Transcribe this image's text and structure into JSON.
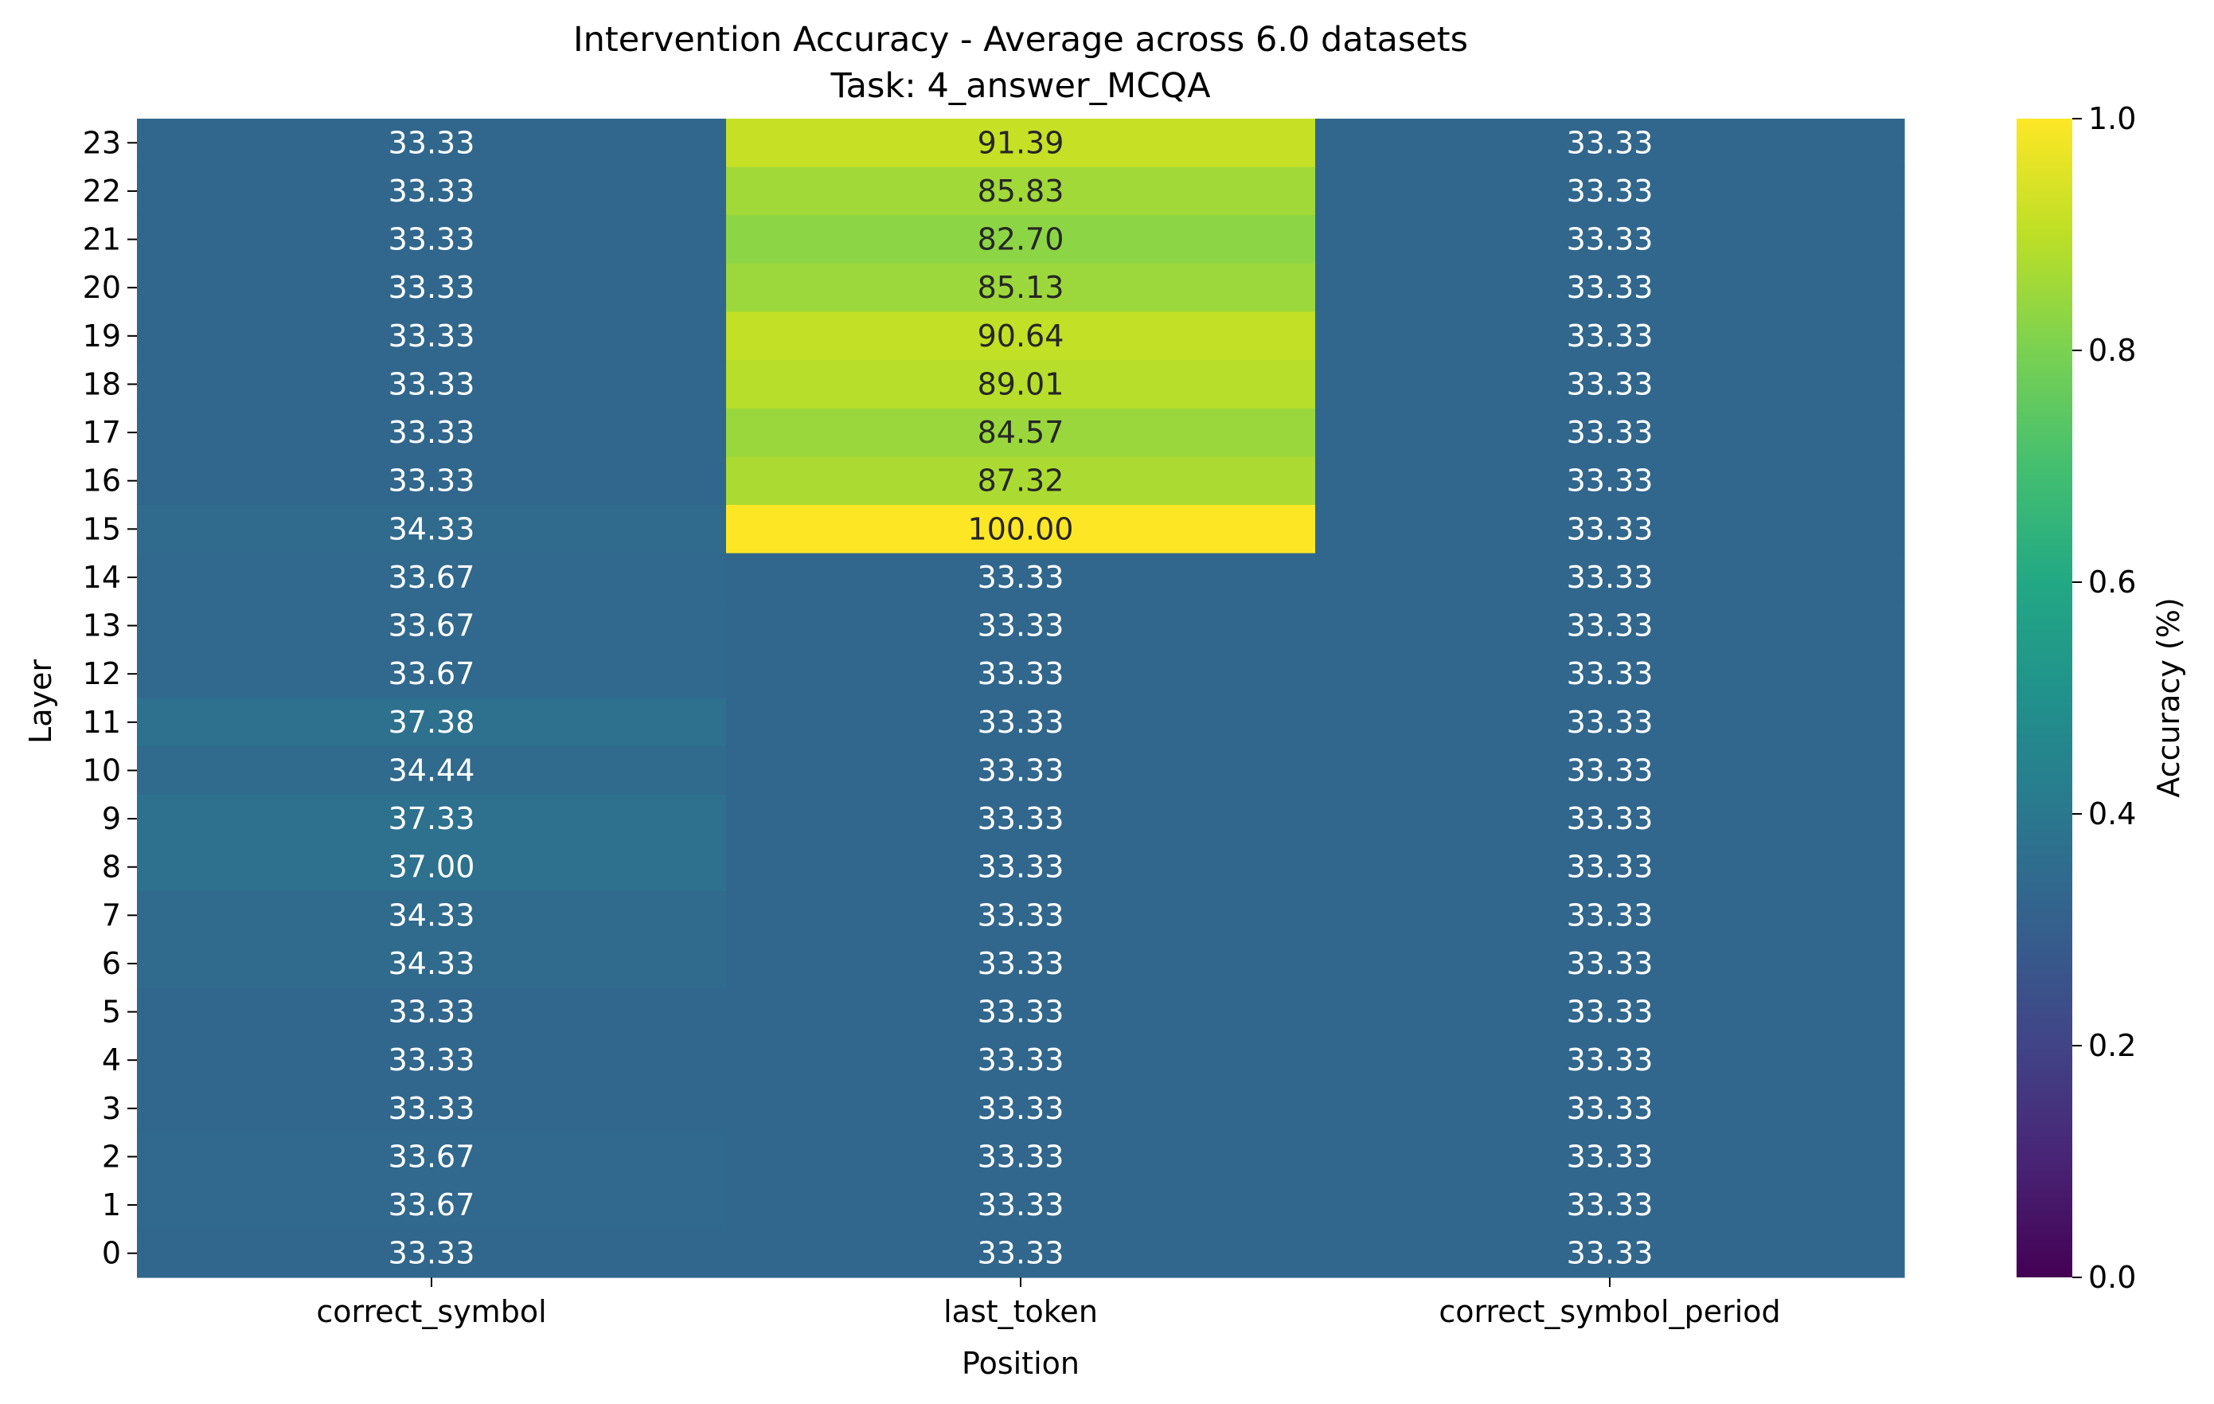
{
  "chart_data": {
    "type": "heatmap",
    "title": "Intervention Accuracy - Average across 6.0 datasets",
    "subtitle": "Task: 4_answer_MCQA",
    "xlabel": "Position",
    "ylabel": "Layer",
    "x_categories": [
      "correct_symbol",
      "last_token",
      "correct_symbol_period"
    ],
    "y_categories": [
      "23",
      "22",
      "21",
      "20",
      "19",
      "18",
      "17",
      "16",
      "15",
      "14",
      "13",
      "12",
      "11",
      "10",
      "9",
      "8",
      "7",
      "6",
      "5",
      "4",
      "3",
      "2",
      "1",
      "0"
    ],
    "values": [
      [
        33.33,
        91.39,
        33.33
      ],
      [
        33.33,
        85.83,
        33.33
      ],
      [
        33.33,
        82.7,
        33.33
      ],
      [
        33.33,
        85.13,
        33.33
      ],
      [
        33.33,
        90.64,
        33.33
      ],
      [
        33.33,
        89.01,
        33.33
      ],
      [
        33.33,
        84.57,
        33.33
      ],
      [
        33.33,
        87.32,
        33.33
      ],
      [
        34.33,
        100.0,
        33.33
      ],
      [
        33.67,
        33.33,
        33.33
      ],
      [
        33.67,
        33.33,
        33.33
      ],
      [
        33.67,
        33.33,
        33.33
      ],
      [
        37.38,
        33.33,
        33.33
      ],
      [
        34.44,
        33.33,
        33.33
      ],
      [
        37.33,
        33.33,
        33.33
      ],
      [
        37.0,
        33.33,
        33.33
      ],
      [
        34.33,
        33.33,
        33.33
      ],
      [
        34.33,
        33.33,
        33.33
      ],
      [
        33.33,
        33.33,
        33.33
      ],
      [
        33.33,
        33.33,
        33.33
      ],
      [
        33.33,
        33.33,
        33.33
      ],
      [
        33.67,
        33.33,
        33.33
      ],
      [
        33.67,
        33.33,
        33.33
      ],
      [
        33.33,
        33.33,
        33.33
      ]
    ],
    "cell_labels": [
      [
        "33.33",
        "91.39",
        "33.33"
      ],
      [
        "33.33",
        "85.83",
        "33.33"
      ],
      [
        "33.33",
        "82.70",
        "33.33"
      ],
      [
        "33.33",
        "85.13",
        "33.33"
      ],
      [
        "33.33",
        "90.64",
        "33.33"
      ],
      [
        "33.33",
        "89.01",
        "33.33"
      ],
      [
        "33.33",
        "84.57",
        "33.33"
      ],
      [
        "33.33",
        "87.32",
        "33.33"
      ],
      [
        "34.33",
        "100.00",
        "33.33"
      ],
      [
        "33.67",
        "33.33",
        "33.33"
      ],
      [
        "33.67",
        "33.33",
        "33.33"
      ],
      [
        "33.67",
        "33.33",
        "33.33"
      ],
      [
        "37.38",
        "33.33",
        "33.33"
      ],
      [
        "34.44",
        "33.33",
        "33.33"
      ],
      [
        "37.33",
        "33.33",
        "33.33"
      ],
      [
        "37.00",
        "33.33",
        "33.33"
      ],
      [
        "34.33",
        "33.33",
        "33.33"
      ],
      [
        "34.33",
        "33.33",
        "33.33"
      ],
      [
        "33.33",
        "33.33",
        "33.33"
      ],
      [
        "33.33",
        "33.33",
        "33.33"
      ],
      [
        "33.33",
        "33.33",
        "33.33"
      ],
      [
        "33.67",
        "33.33",
        "33.33"
      ],
      [
        "33.67",
        "33.33",
        "33.33"
      ],
      [
        "33.33",
        "33.33",
        "33.33"
      ]
    ],
    "colormap": "viridis",
    "colorbar": {
      "label": "Accuracy (%)",
      "range": [
        0.0,
        1.0
      ],
      "ticks": [
        "0.0",
        "0.2",
        "0.4",
        "0.6",
        "0.8",
        "1.0"
      ]
    },
    "grid": false,
    "legend": "colorbar-right"
  }
}
